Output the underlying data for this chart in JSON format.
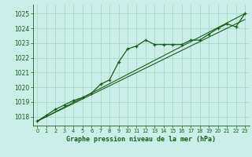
{
  "title": "Graphe pression niveau de la mer (hPa)",
  "bg_color": "#cceee8",
  "grid_color": "#aaddcc",
  "line_color": "#1a5c1a",
  "xlim": [
    -0.5,
    23.5
  ],
  "ylim": [
    1017.4,
    1025.6
  ],
  "yticks": [
    1018,
    1019,
    1020,
    1021,
    1022,
    1023,
    1024,
    1025
  ],
  "xticks": [
    0,
    1,
    2,
    3,
    4,
    5,
    6,
    7,
    8,
    9,
    10,
    11,
    12,
    13,
    14,
    15,
    16,
    17,
    18,
    19,
    20,
    21,
    22,
    23
  ],
  "series1_x": [
    0,
    1,
    2,
    3,
    4,
    5,
    6,
    7,
    8,
    9,
    10,
    11,
    12,
    13,
    14,
    15,
    16,
    17,
    18,
    19,
    20,
    21,
    22,
    23
  ],
  "series1_y": [
    1017.7,
    1018.1,
    1018.5,
    1018.8,
    1019.1,
    1019.3,
    1019.6,
    1020.2,
    1020.5,
    1021.7,
    1022.6,
    1022.8,
    1023.2,
    1022.9,
    1022.9,
    1022.9,
    1022.9,
    1023.2,
    1023.2,
    1023.6,
    1024.0,
    1024.3,
    1024.1,
    1025.0
  ],
  "series2_x": [
    0,
    23
  ],
  "series2_y": [
    1017.7,
    1025.0
  ],
  "series3_x": [
    0,
    23
  ],
  "series3_y": [
    1017.7,
    1024.6
  ]
}
